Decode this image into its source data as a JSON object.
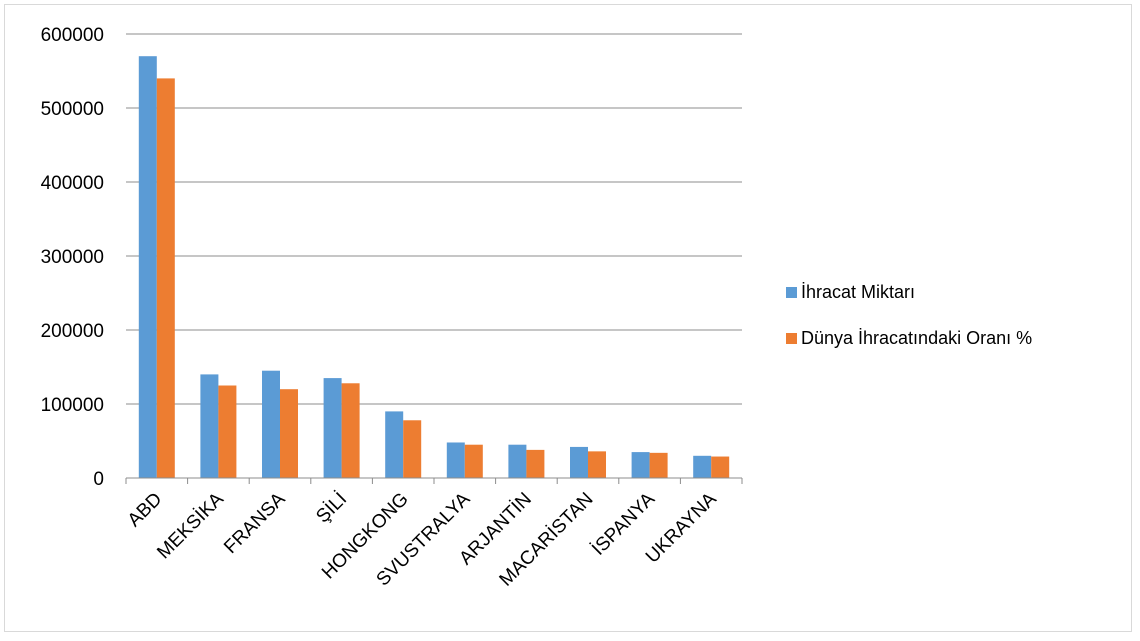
{
  "chart_data": {
    "type": "bar",
    "title": "",
    "xlabel": "",
    "ylabel": "",
    "ylim": [
      0,
      600000
    ],
    "yticks": [
      0,
      100000,
      200000,
      300000,
      400000,
      500000,
      600000
    ],
    "ytick_labels": [
      "0",
      "100000",
      "200000",
      "300000",
      "400000",
      "500000",
      "600000"
    ],
    "grid": true,
    "legend_position": "right",
    "categories": [
      "ABD",
      "MEKSİKA",
      "FRANSA",
      "ŞİLİ",
      "HONGKONG",
      "SVUSTRALYA",
      "ARJANTİN",
      "MACARİSTAN",
      "İSPANYA",
      "UKRAYNA"
    ],
    "series": [
      {
        "name": "İhracat Miktarı",
        "color": "#5b9bd5",
        "values": [
          570000,
          140000,
          145000,
          135000,
          90000,
          48000,
          45000,
          42000,
          35000,
          30000
        ]
      },
      {
        "name": "Dünya İhracatındaki Oranı %",
        "color": "#ed7d31",
        "values": [
          540000,
          125000,
          120000,
          128000,
          78000,
          45000,
          38000,
          36000,
          34000,
          29000
        ]
      }
    ]
  }
}
